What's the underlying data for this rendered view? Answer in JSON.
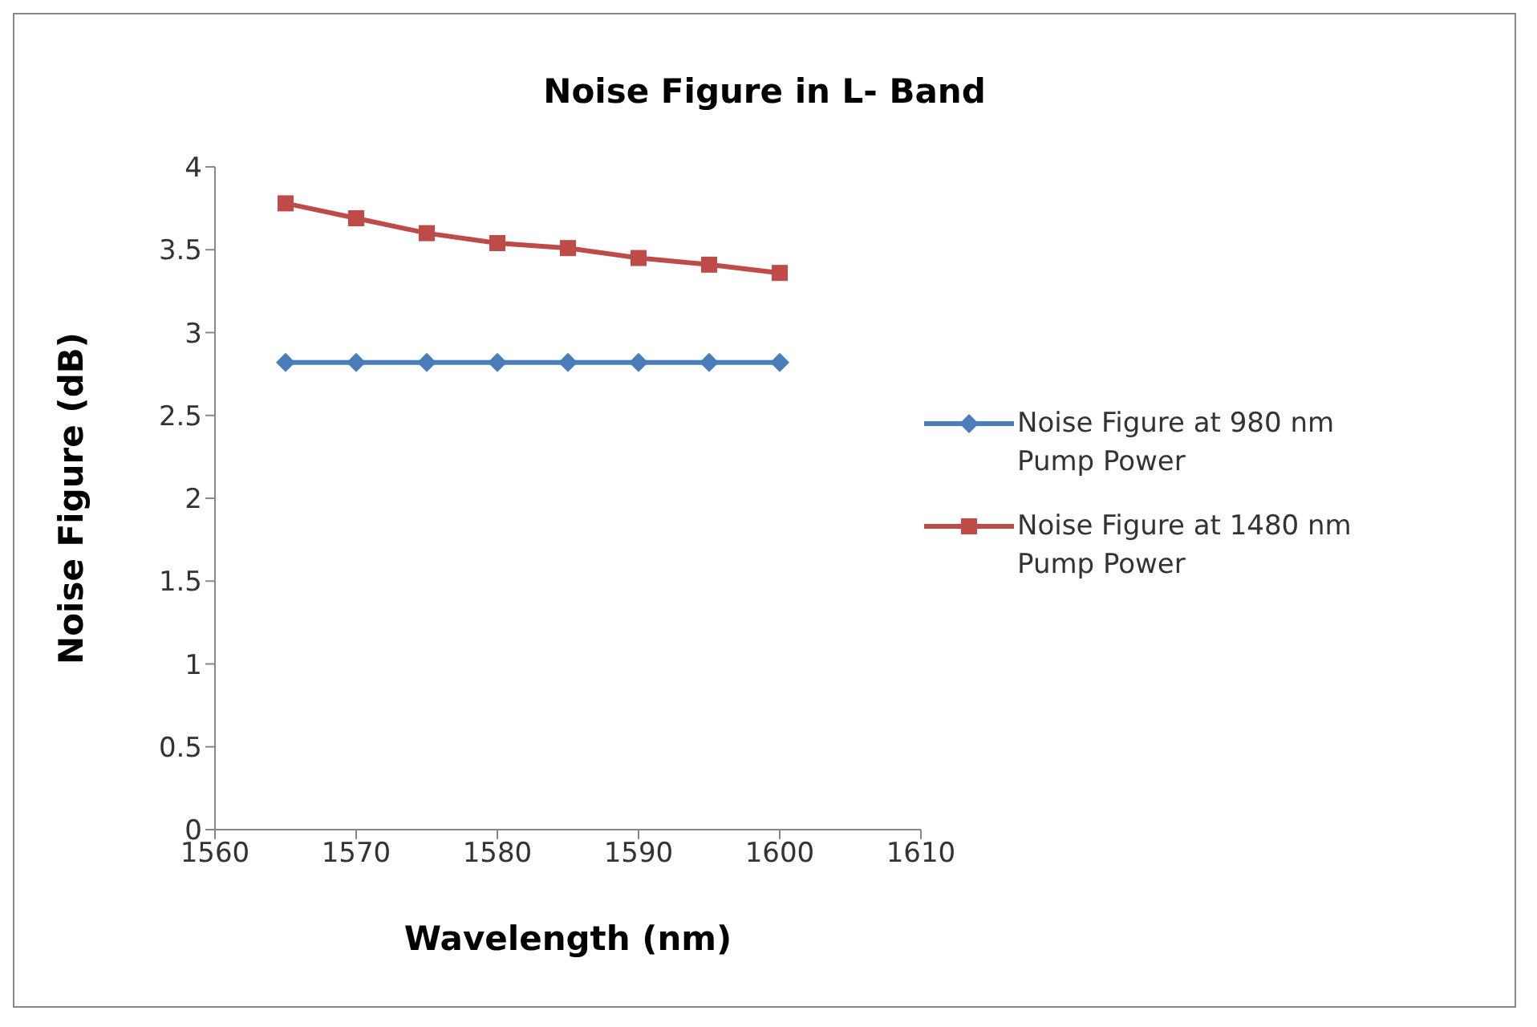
{
  "chart_data": {
    "type": "line",
    "title": "Noise Figure in L- Band",
    "xlabel": "Wavelength (nm)",
    "ylabel": "Noise Figure (dB)",
    "x": [
      1565,
      1570,
      1575,
      1580,
      1585,
      1590,
      1595,
      1600
    ],
    "series": [
      {
        "name": "Noise Figure at 980 nm Pump Power",
        "color": "#4a7ebb",
        "marker": "diamond",
        "values": [
          2.82,
          2.82,
          2.82,
          2.82,
          2.82,
          2.82,
          2.82,
          2.82
        ]
      },
      {
        "name": "Noise Figure at 1480 nm  Pump Power",
        "color": "#be4b48",
        "marker": "square",
        "values": [
          3.78,
          3.69,
          3.6,
          3.54,
          3.51,
          3.45,
          3.41,
          3.36
        ]
      }
    ],
    "xlim": [
      1560,
      1610
    ],
    "xticks": [
      1560,
      1570,
      1580,
      1590,
      1600,
      1610
    ],
    "ylim": [
      0,
      4
    ],
    "yticks": [
      0,
      0.5,
      1,
      1.5,
      2,
      2.5,
      3,
      3.5,
      4
    ],
    "grid": false,
    "legend": "right",
    "line_style": "solid"
  }
}
